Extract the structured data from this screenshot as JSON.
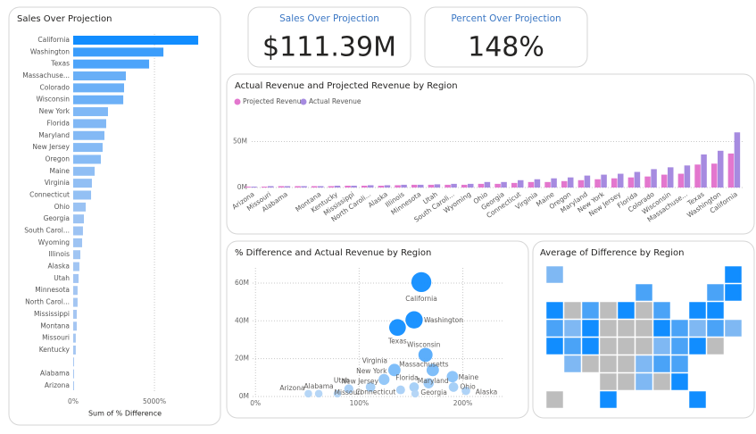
{
  "cards": [
    {
      "title": "Sales Over Projection",
      "value": "$111.39M"
    },
    {
      "title": "Percent Over Projection",
      "value": "148%"
    }
  ],
  "chart_data": [
    {
      "type": "hbar",
      "title": "Sales Over Projection",
      "x_label": "Sum of % Difference",
      "categories": [
        "California",
        "Washington",
        "Texas",
        "Massachuse...",
        "Colorado",
        "Wisconsin",
        "New York",
        "Florida",
        "Maryland",
        "New Jersey",
        "Oregon",
        "Maine",
        "Virginia",
        "Connecticut",
        "Ohio",
        "Georgia",
        "South Carol...",
        "Wyoming",
        "Illinois",
        "Alaska",
        "Utah",
        "Minnesota",
        "North Carol...",
        "Mississippi",
        "Montana",
        "Missouri",
        "Kentucky",
        null,
        "Alabama",
        "Arizona"
      ],
      "values": [
        7690,
        5550,
        4670,
        3240,
        3130,
        3080,
        2140,
        2030,
        1920,
        1810,
        1700,
        1320,
        1150,
        1100,
        770,
        660,
        600,
        550,
        440,
        380,
        330,
        270,
        270,
        220,
        220,
        160,
        160,
        55,
        55,
        55
      ],
      "color_scale": [
        "#a9c8f2",
        "#118dff"
      ],
      "xlim": [
        0,
        8400
      ],
      "xticks": [
        {
          "value": 0,
          "label": "0%"
        },
        {
          "value": 5000,
          "label": "5000%"
        }
      ],
      "grid": true
    },
    {
      "type": "grouped_bar",
      "title": "Actual Revenue and Projected Revenue by Region",
      "categories": [
        "Arizona",
        "Missouri",
        "Alabama",
        null,
        "Montana",
        "Kentucky",
        "Mississippi",
        "North Caroli...",
        "Alaska",
        "Illinois",
        "Minnesota",
        "Utah",
        "South Caroli...",
        "Wyoming",
        "Ohio",
        "Georgia",
        "Connecticut",
        "Virginia",
        "Maine",
        "Oregon",
        "Maryland",
        "New York",
        "New Jersey",
        "Florida",
        "Colorado",
        "Wisconsin",
        "Massachuse...",
        "Texas",
        "Washington",
        "California"
      ],
      "series": [
        {
          "name": "Projected Revenue",
          "color": "#e377ce",
          "values": [
            1,
            1,
            1.5,
            1.5,
            1.5,
            1.5,
            2,
            2,
            2,
            2.5,
            3,
            3,
            3,
            3,
            4,
            4,
            5,
            6,
            6,
            7,
            8,
            9,
            10,
            11,
            12,
            14,
            15,
            25,
            26,
            37
          ]
        },
        {
          "name": "Actual Revenue",
          "color": "#a68be0",
          "values": [
            1,
            1.5,
            1.5,
            1.5,
            1.5,
            2,
            2,
            2.5,
            2.5,
            3,
            3,
            3.5,
            4,
            4,
            6,
            6,
            8,
            9,
            10,
            11,
            13,
            14,
            15,
            17,
            20,
            22,
            24,
            36,
            40,
            60
          ]
        }
      ],
      "ylim": [
        0,
        68
      ],
      "yticks": [
        {
          "value": 0,
          "label": "0M"
        },
        {
          "value": 50,
          "label": "50M"
        }
      ],
      "grid": true
    },
    {
      "type": "scatter",
      "title": "% Difference and Actual Revenue by Region",
      "categories": [
        "California",
        "Washington",
        "Texas",
        "Wisconsin",
        "Massachusetts",
        "Virginia",
        "New York",
        "New Jersey",
        "Utah",
        "Alabama",
        "Arizona",
        "Missouri",
        "Connecticut",
        "Florida",
        "Maryland",
        "Georgia",
        "Maine",
        "Ohio",
        "Alaska"
      ],
      "x": [
        160,
        153,
        137,
        164,
        171,
        134,
        124,
        111,
        90,
        61,
        51,
        79,
        140,
        153,
        167,
        154,
        190,
        191,
        203
      ],
      "values": [
        60.5,
        40.5,
        36.5,
        22,
        14,
        14,
        9,
        5,
        4,
        1.5,
        1.5,
        1.5,
        3.5,
        5,
        7,
        1.5,
        10.5,
        5,
        3
      ],
      "color_scale": [
        "#b9d7f6",
        "#118dff"
      ],
      "xlim": [
        -20,
        240
      ],
      "xticks": [
        {
          "value": 0,
          "label": "0%"
        },
        {
          "value": 100,
          "label": "100%"
        },
        {
          "value": 200,
          "label": "200%"
        }
      ],
      "ylim": [
        0,
        68
      ],
      "yticks": [
        {
          "value": 0,
          "label": "0M"
        },
        {
          "value": 20,
          "label": "20M"
        },
        {
          "value": 40,
          "label": "40M"
        },
        {
          "value": 60,
          "label": "60M"
        }
      ],
      "grid": true
    },
    {
      "type": "map",
      "title": "Average of Difference by Region"
    }
  ]
}
